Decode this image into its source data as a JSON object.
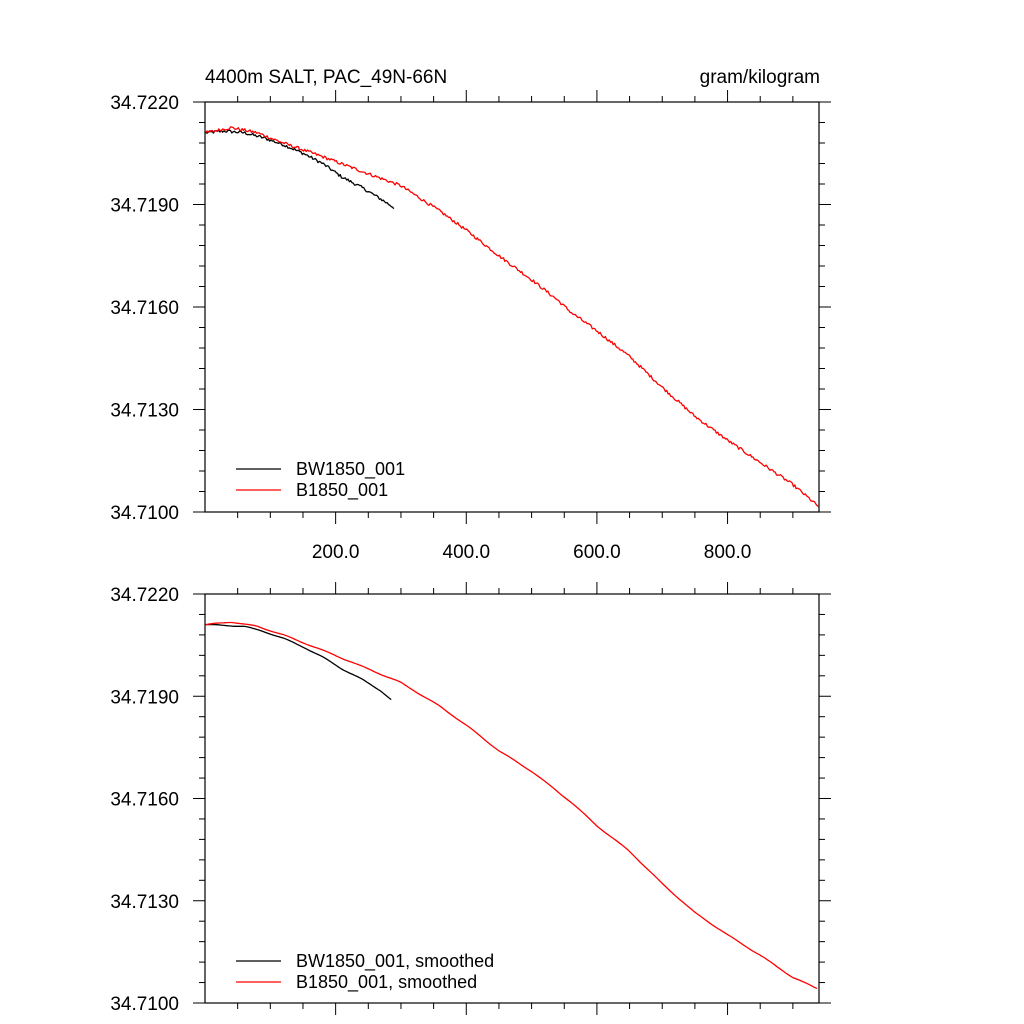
{
  "chart_data": [
    {
      "type": "line",
      "title_left": "4400m SALT, PAC_49N-66N",
      "title_right": "gram/kilogram",
      "xlim": [
        0,
        940
      ],
      "ylim": [
        34.71,
        34.722
      ],
      "x_ticks": [
        200,
        400,
        600,
        800
      ],
      "x_tick_labels": [
        "200.0",
        "400.0",
        "600.0",
        "800.0"
      ],
      "y_ticks": [
        34.71,
        34.713,
        34.716,
        34.719,
        34.722
      ],
      "y_tick_labels": [
        "34.7100",
        "34.7130",
        "34.7160",
        "34.7190",
        "34.7220"
      ],
      "grid": false,
      "legend_position": "bottom-left",
      "series": [
        {
          "name": "BW1850_001",
          "color": "#000000",
          "noisy": true,
          "points": [
            [
              1,
              34.7211
            ],
            [
              30,
              34.72115
            ],
            [
              60,
              34.7211
            ],
            [
              90,
              34.72095
            ],
            [
              120,
              34.72075
            ],
            [
              150,
              34.7205
            ],
            [
              180,
              34.7202
            ],
            [
              210,
              34.7198
            ],
            [
              240,
              34.7195
            ],
            [
              270,
              34.71915
            ],
            [
              290,
              34.7189
            ]
          ]
        },
        {
          "name": "B1850_001",
          "color": "#ff0000",
          "noisy": true,
          "points": [
            [
              1,
              34.7211
            ],
            [
              40,
              34.72125
            ],
            [
              80,
              34.7211
            ],
            [
              120,
              34.7208
            ],
            [
              180,
              34.7204
            ],
            [
              250,
              34.7199
            ],
            [
              300,
              34.71955
            ],
            [
              360,
              34.7188
            ],
            [
              400,
              34.71825
            ],
            [
              450,
              34.7175
            ],
            [
              500,
              34.7168
            ],
            [
              540,
              34.7162
            ],
            [
              560,
              34.71585
            ],
            [
              600,
              34.7153
            ],
            [
              650,
              34.71455
            ],
            [
              700,
              34.71365
            ],
            [
              750,
              34.7128
            ],
            [
              800,
              34.7121
            ],
            [
              850,
              34.71145
            ],
            [
              900,
              34.7108
            ],
            [
              940,
              34.71015
            ]
          ]
        }
      ]
    },
    {
      "type": "line",
      "xlim": [
        0,
        940
      ],
      "ylim": [
        34.71,
        34.722
      ],
      "x_ticks": [
        200,
        400,
        600,
        800
      ],
      "y_ticks": [
        34.71,
        34.713,
        34.716,
        34.719,
        34.722
      ],
      "y_tick_labels": [
        "34.7100",
        "34.7130",
        "34.7160",
        "34.7190",
        "34.7220"
      ],
      "grid": false,
      "legend_position": "bottom-left",
      "series": [
        {
          "name": "BW1850_001, smoothed",
          "color": "#000000",
          "noisy": false,
          "points": [
            [
              1,
              34.7211
            ],
            [
              30,
              34.72108
            ],
            [
              60,
              34.72105
            ],
            [
              90,
              34.7209
            ],
            [
              120,
              34.7207
            ],
            [
              150,
              34.72045
            ],
            [
              180,
              34.72015
            ],
            [
              210,
              34.7198
            ],
            [
              240,
              34.7195
            ],
            [
              270,
              34.71915
            ],
            [
              285,
              34.7189
            ]
          ]
        },
        {
          "name": "B1850_001, smoothed",
          "color": "#ff0000",
          "noisy": false,
          "points": [
            [
              1,
              34.7211
            ],
            [
              40,
              34.72118
            ],
            [
              80,
              34.72105
            ],
            [
              120,
              34.7208
            ],
            [
              180,
              34.72035
            ],
            [
              250,
              34.7198
            ],
            [
              300,
              34.7194
            ],
            [
              360,
              34.7187
            ],
            [
              400,
              34.71815
            ],
            [
              450,
              34.7174
            ],
            [
              500,
              34.7168
            ],
            [
              540,
              34.7162
            ],
            [
              560,
              34.7159
            ],
            [
              600,
              34.7152
            ],
            [
              650,
              34.71445
            ],
            [
              700,
              34.7135
            ],
            [
              750,
              34.71265
            ],
            [
              800,
              34.712
            ],
            [
              850,
              34.7114
            ],
            [
              900,
              34.71075
            ],
            [
              940,
              34.7104
            ]
          ]
        }
      ]
    }
  ]
}
